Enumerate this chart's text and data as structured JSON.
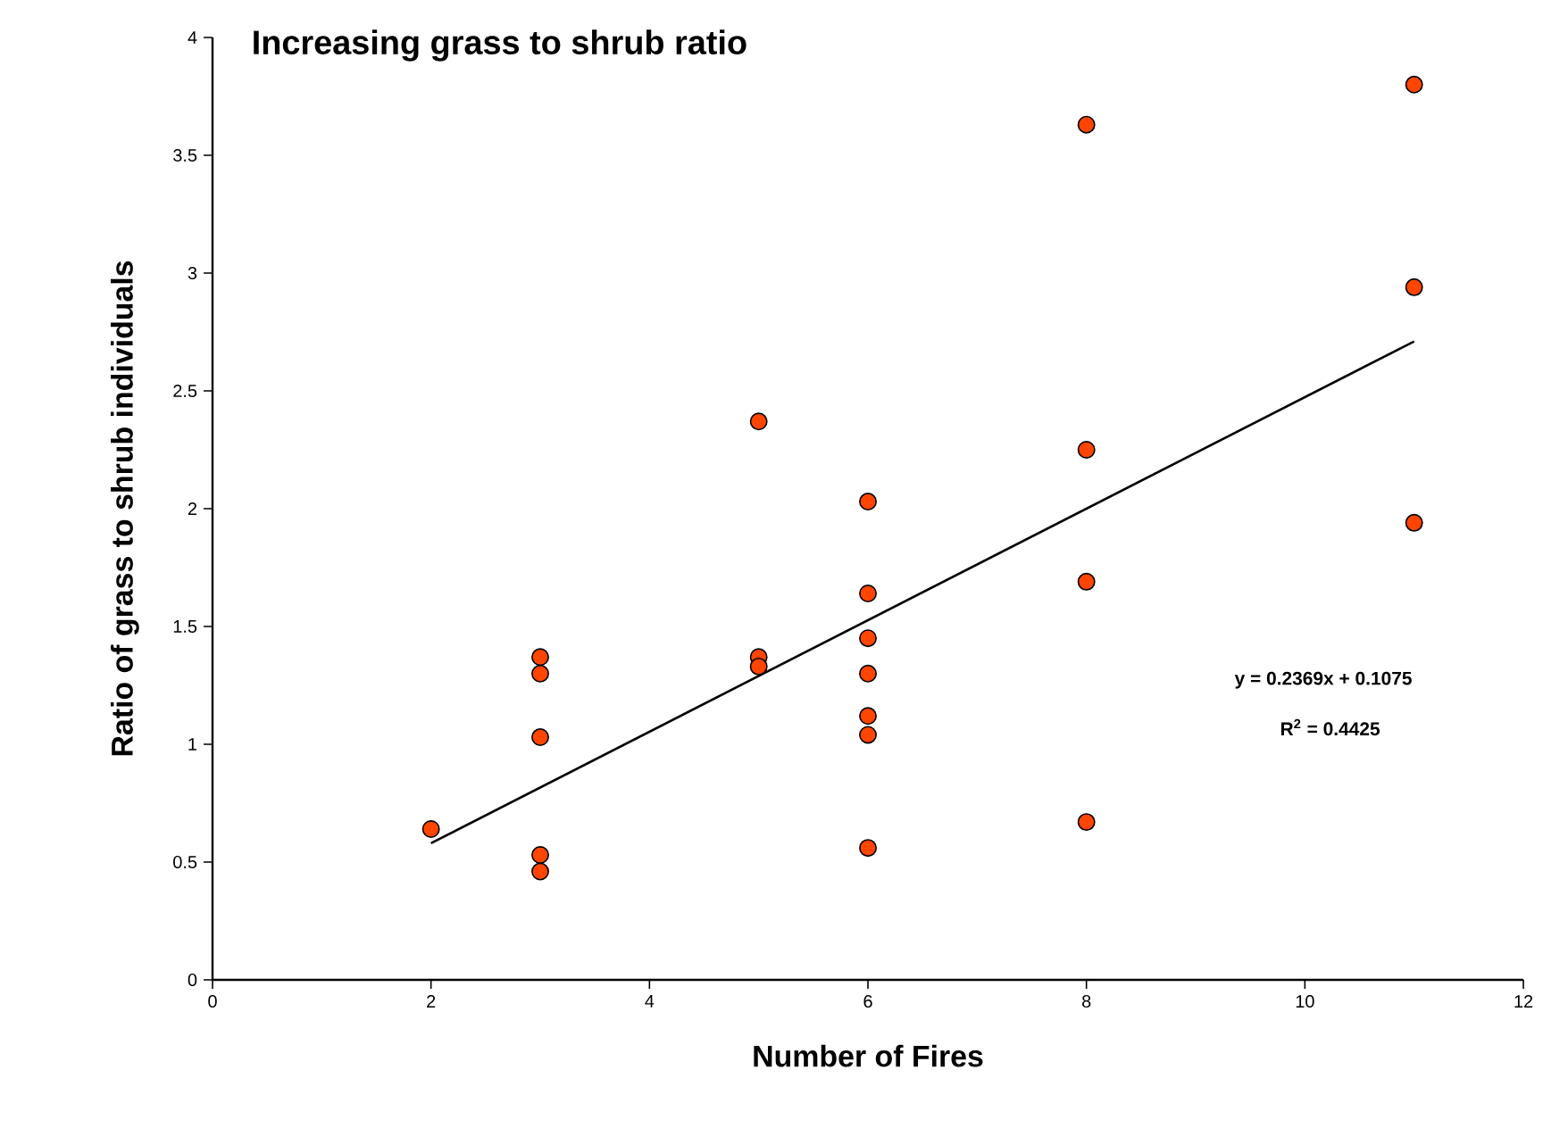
{
  "chart_data": {
    "type": "scatter",
    "title": "Increasing grass to shrub ratio",
    "xlabel": "Number of Fires",
    "ylabel": "Ratio of grass to shrub individuals",
    "xlim": [
      0,
      12
    ],
    "xticks": [
      0,
      2,
      4,
      6,
      8,
      10,
      12
    ],
    "ylim": [
      0,
      4
    ],
    "yticks": [
      0,
      0.5,
      1,
      1.5,
      2,
      2.5,
      3,
      3.5,
      4
    ],
    "series": [
      {
        "color": "#ff4500",
        "marker": "circle",
        "x": [
          2,
          3,
          3,
          3,
          3,
          3,
          5,
          5,
          5,
          6,
          6,
          6,
          6,
          6,
          6,
          6,
          8,
          8,
          8,
          8,
          11,
          11,
          11
        ],
        "values": [
          0.64,
          1.37,
          1.3,
          1.03,
          0.53,
          0.46,
          2.37,
          1.37,
          1.33,
          2.03,
          1.64,
          1.45,
          1.3,
          1.12,
          1.04,
          0.56,
          3.63,
          2.25,
          1.69,
          0.67,
          3.8,
          2.94,
          1.94
        ]
      },
      {
        "type": "line",
        "color": "#000000",
        "x": [
          2,
          11
        ],
        "values": [
          0.58,
          2.71
        ]
      }
    ],
    "annotations": [
      "y = 0.2369x + 0.1075",
      "R$^{2}$ = 0.4425"
    ]
  }
}
